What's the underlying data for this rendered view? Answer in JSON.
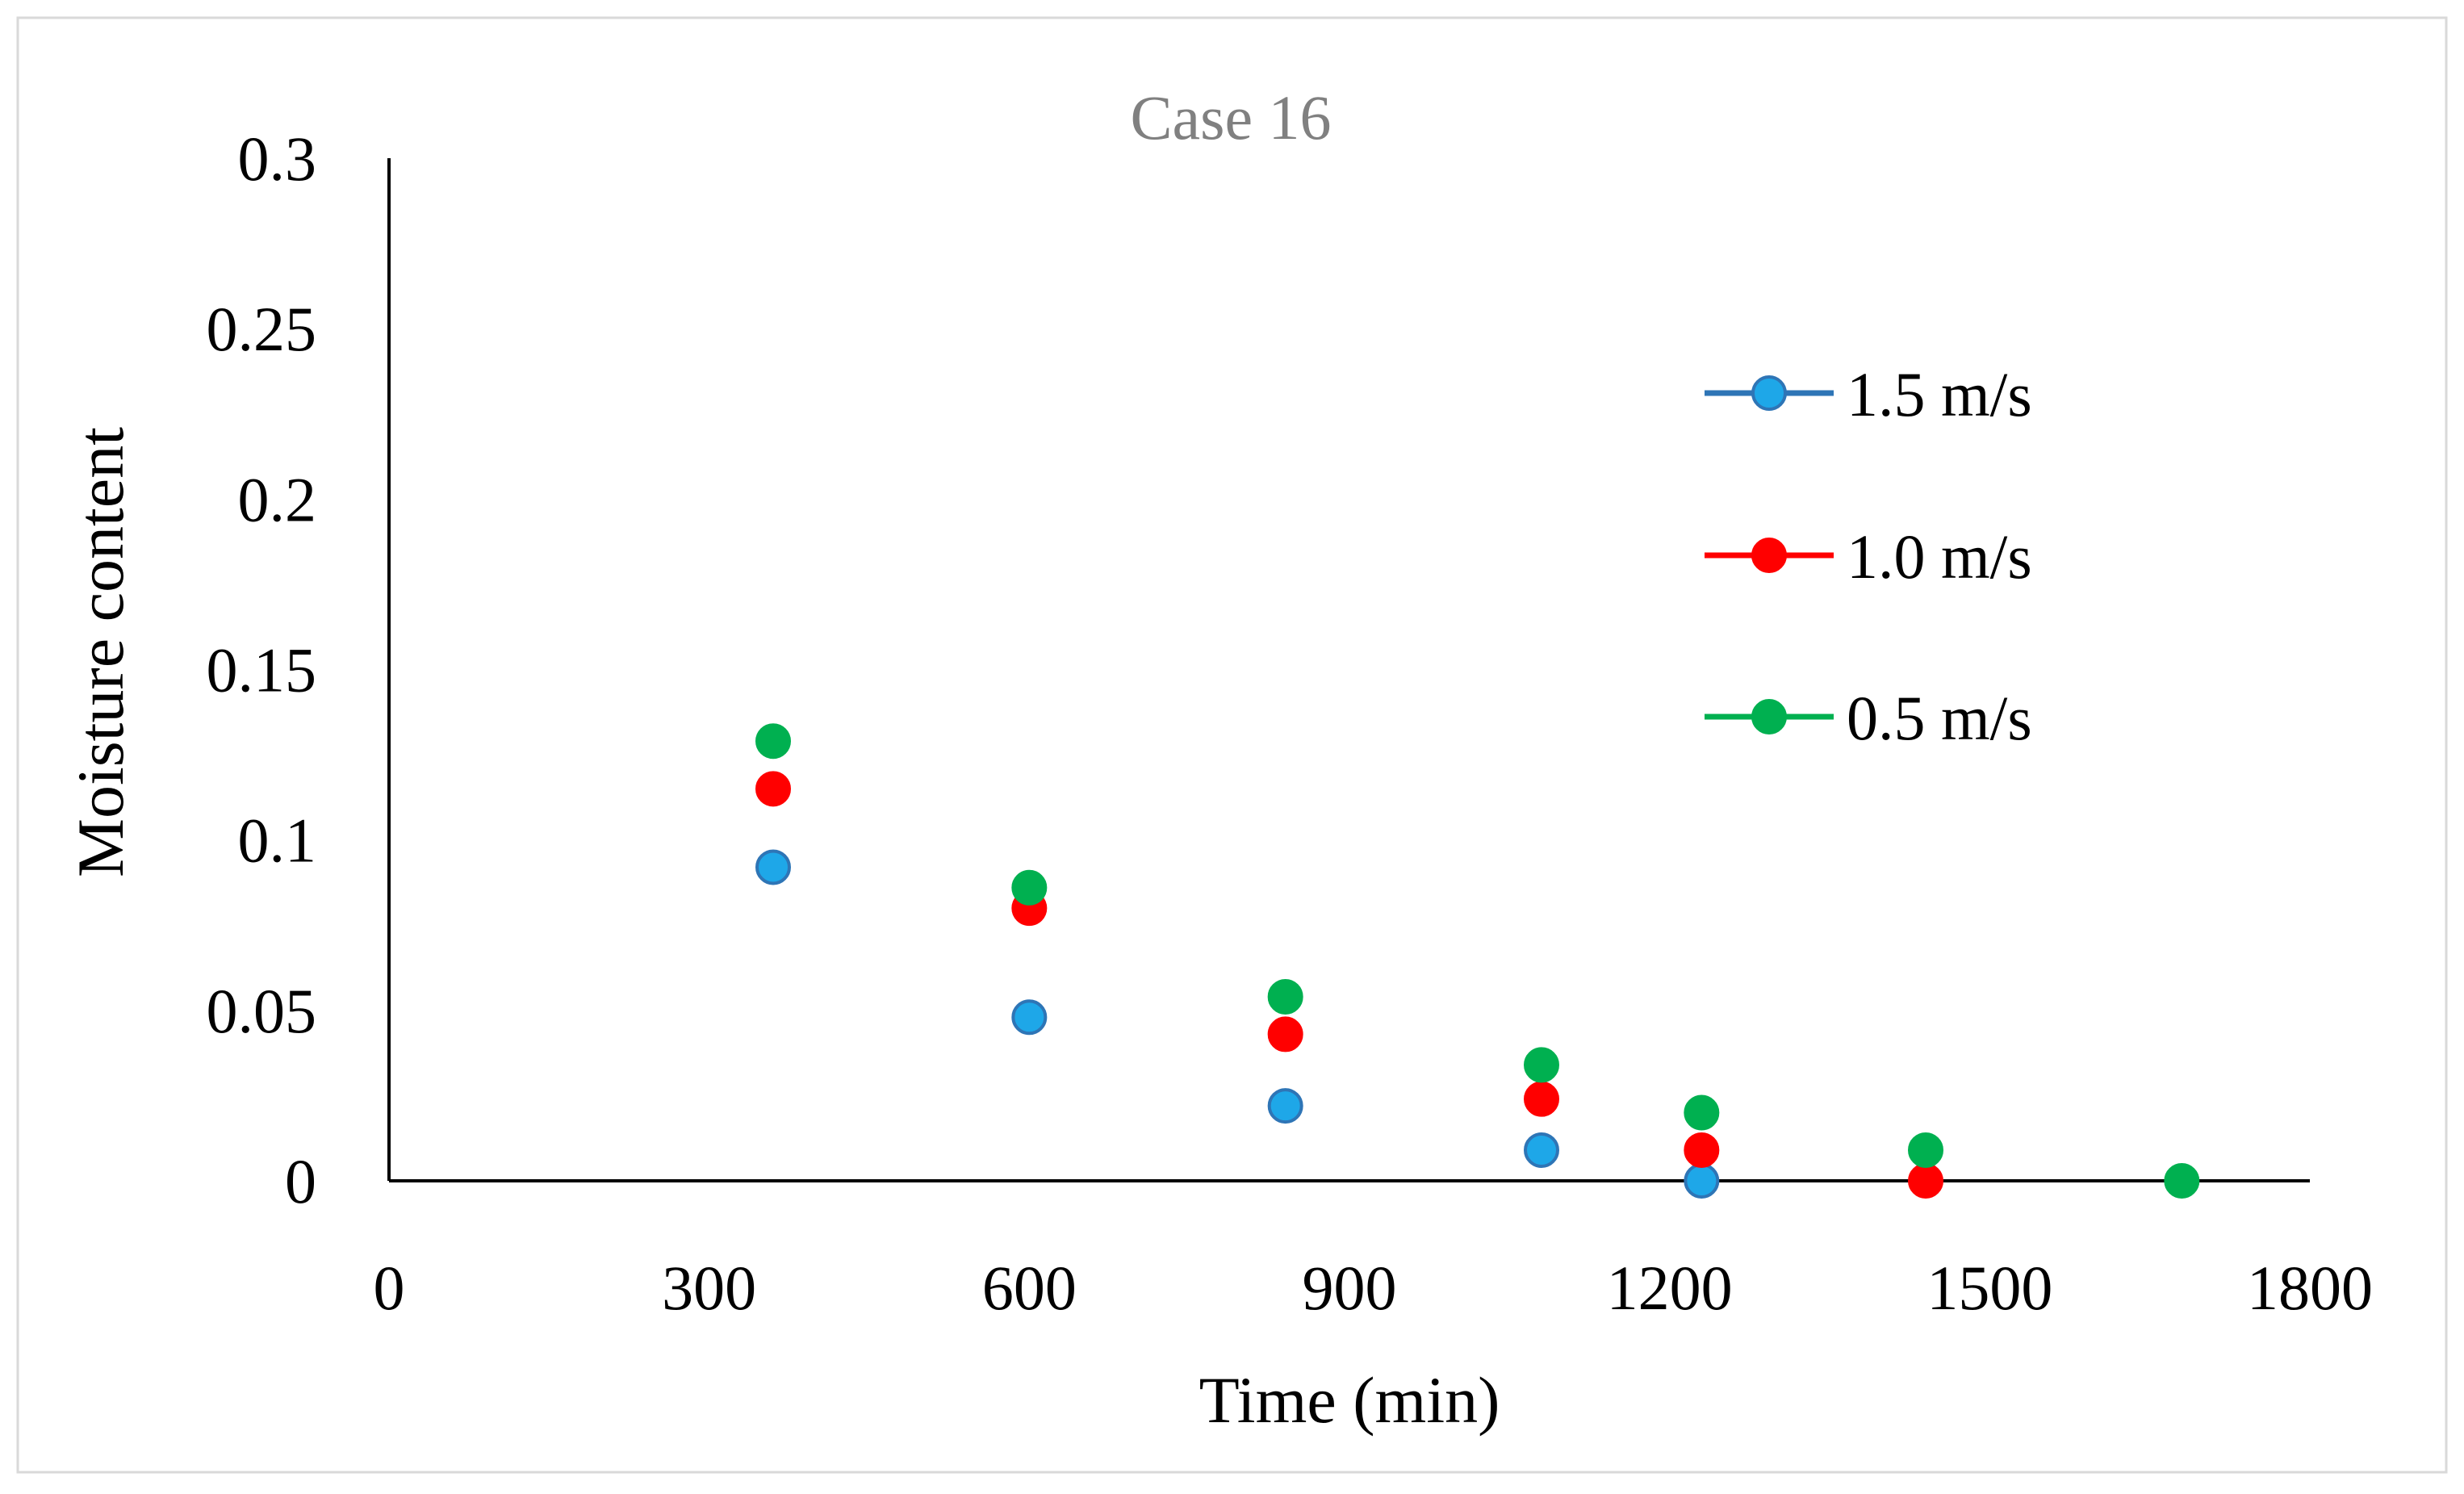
{
  "chart_data": {
    "type": "scatter",
    "title": "Case 16",
    "xlabel": "Time (min)",
    "ylabel": "Moisture content",
    "xlim": [
      0,
      1800
    ],
    "ylim": [
      0,
      0.3
    ],
    "xticks": [
      0,
      300,
      600,
      900,
      1200,
      1500,
      1800
    ],
    "yticks": [
      0,
      0.05,
      0.1,
      0.15,
      0.2,
      0.25,
      0.3
    ],
    "xtick_labels": [
      "0",
      "300",
      "600",
      "900",
      "1200",
      "1500",
      "1800"
    ],
    "ytick_labels": [
      "0",
      "0.05",
      "0.1",
      "0.15",
      "0.2",
      "0.25",
      "0.3"
    ],
    "legend_position": "right",
    "series": [
      {
        "name": "1.5 m/s",
        "color": "#1ea7e8",
        "edge_color": "#2e75b6",
        "x": [
          360,
          600,
          840,
          1080,
          1230
        ],
        "y": [
          0.092,
          0.048,
          0.022,
          0.009,
          0.0
        ]
      },
      {
        "name": "1.0 m/s",
        "color": "#ff0000",
        "edge_color": "#ff0000",
        "x": [
          360,
          600,
          840,
          1080,
          1230,
          1440
        ],
        "y": [
          0.115,
          0.08,
          0.043,
          0.024,
          0.009,
          0.0
        ]
      },
      {
        "name": "0.5 m/s",
        "color": "#00b050",
        "edge_color": "#00b050",
        "x": [
          360,
          600,
          840,
          1080,
          1230,
          1440,
          1680
        ],
        "y": [
          0.129,
          0.086,
          0.054,
          0.034,
          0.02,
          0.009,
          0.0
        ]
      }
    ]
  }
}
